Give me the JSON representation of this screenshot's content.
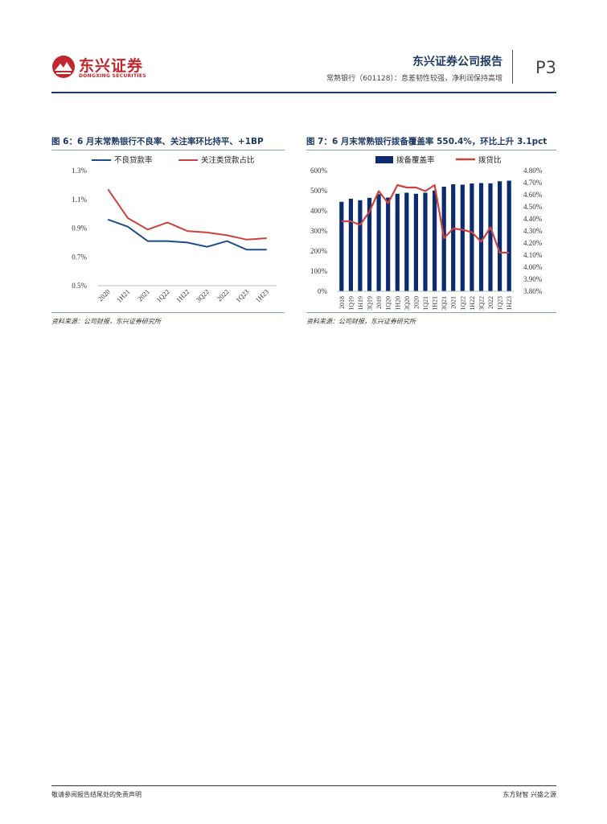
{
  "header": {
    "logo_cn": "东兴证券",
    "logo_en": "DONGXING SECURITIES",
    "report_title": "东兴证券公司报告",
    "report_subtitle": "常熟银行（601128）：息差韧性较强，净利润保持高增",
    "page_number": "P3"
  },
  "colors": {
    "brand_red": "#c0282d",
    "navy": "#1f3864",
    "series_blue": "#1f4e8c",
    "series_red": "#c9443e",
    "bar_navy": "#0b2a6f"
  },
  "figure6": {
    "title": "图 6：6 月末常熟银行不良率、关注率环比持平、+1BP",
    "source": "资料来源：公司财报，东兴证券研究所"
  },
  "figure7": {
    "title": "图 7：6 月末常熟银行拨备覆盖率 550.4%，环比上升 3.1pct",
    "source": "资料来源：公司财报，东兴证券研究所"
  },
  "chart_data": [
    {
      "type": "line",
      "categories": [
        "2020",
        "1H21",
        "2021",
        "1Q22",
        "1H22",
        "3Q22",
        "2022",
        "1Q23",
        "1H23"
      ],
      "series": [
        {
          "name": "不良贷款率",
          "color": "#1f4e8c",
          "values": [
            0.96,
            0.91,
            0.81,
            0.81,
            0.8,
            0.77,
            0.81,
            0.75,
            0.75
          ]
        },
        {
          "name": "关注类贷款占比",
          "color": "#c9443e",
          "values": [
            1.17,
            0.97,
            0.89,
            0.94,
            0.88,
            0.87,
            0.85,
            0.82,
            0.83
          ]
        }
      ],
      "y_ticks": [
        "1.3%",
        "1.1%",
        "0.9%",
        "0.7%",
        "0.5%"
      ],
      "ylim": [
        0.5,
        1.3
      ],
      "legend": "top"
    },
    {
      "type": "bar",
      "categories": [
        "2018",
        "1Q19",
        "1H19",
        "3Q19",
        "2019",
        "1Q20",
        "1H20",
        "3Q20",
        "2020",
        "1Q21",
        "1H21",
        "3Q21",
        "2021",
        "1Q22",
        "1H22",
        "3Q22",
        "2022",
        "1Q23",
        "1H23"
      ],
      "series": [
        {
          "name": "拨备覆盖率",
          "type": "bar",
          "axis": "left",
          "color": "#0b2a6f",
          "values": [
            445,
            460,
            453,
            465,
            483,
            466,
            485,
            490,
            485,
            490,
            501,
            520,
            532,
            530,
            536,
            538,
            537,
            547,
            550
          ]
        },
        {
          "name": "拨贷比",
          "type": "line",
          "axis": "right",
          "color": "#c9443e",
          "values": [
            4.38,
            4.38,
            4.35,
            4.46,
            4.63,
            4.53,
            4.68,
            4.66,
            4.66,
            4.63,
            4.68,
            4.24,
            4.32,
            4.31,
            4.29,
            4.21,
            4.33,
            4.12,
            4.12
          ]
        }
      ],
      "y_left_ticks": [
        "600%",
        "500%",
        "400%",
        "300%",
        "200%",
        "100%",
        "0%"
      ],
      "y_right_ticks": [
        "4.80%",
        "4.70%",
        "4.60%",
        "4.50%",
        "4.40%",
        "4.30%",
        "4.20%",
        "4.10%",
        "4.00%",
        "3.90%",
        "3.80%"
      ],
      "ylim_left": [
        0,
        600
      ],
      "ylim_right": [
        3.8,
        4.8
      ],
      "legend": "top"
    }
  ],
  "footer": {
    "left": "敬请参阅报告结尾处的免责声明",
    "right": "东方财智 兴盛之源"
  }
}
